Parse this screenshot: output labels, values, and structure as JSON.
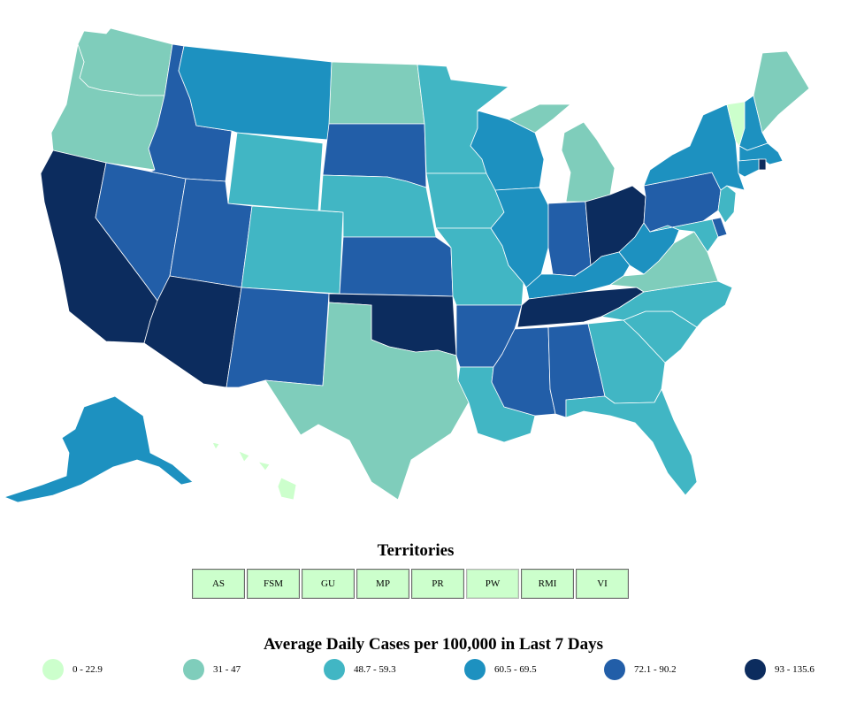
{
  "map": {
    "colors": {
      "bin1": "#ccffcc",
      "bin2": "#7fcdbb",
      "bin3": "#41b6c4",
      "bin4": "#1d91c0",
      "bin5": "#225ea8",
      "bin6": "#0c2c5e"
    },
    "states": [
      {
        "id": "WA",
        "bin": "bin2"
      },
      {
        "id": "OR",
        "bin": "bin2"
      },
      {
        "id": "CA",
        "bin": "bin6"
      },
      {
        "id": "NV",
        "bin": "bin5"
      },
      {
        "id": "ID",
        "bin": "bin5"
      },
      {
        "id": "MT",
        "bin": "bin4"
      },
      {
        "id": "WY",
        "bin": "bin3"
      },
      {
        "id": "UT",
        "bin": "bin5"
      },
      {
        "id": "AZ",
        "bin": "bin6"
      },
      {
        "id": "CO",
        "bin": "bin3"
      },
      {
        "id": "NM",
        "bin": "bin5"
      },
      {
        "id": "ND",
        "bin": "bin2"
      },
      {
        "id": "SD",
        "bin": "bin5"
      },
      {
        "id": "NE",
        "bin": "bin3"
      },
      {
        "id": "KS",
        "bin": "bin5"
      },
      {
        "id": "OK",
        "bin": "bin6"
      },
      {
        "id": "TX",
        "bin": "bin2"
      },
      {
        "id": "MN",
        "bin": "bin3"
      },
      {
        "id": "IA",
        "bin": "bin3"
      },
      {
        "id": "MO",
        "bin": "bin3"
      },
      {
        "id": "AR",
        "bin": "bin5"
      },
      {
        "id": "LA",
        "bin": "bin3"
      },
      {
        "id": "WI",
        "bin": "bin4"
      },
      {
        "id": "IL",
        "bin": "bin4"
      },
      {
        "id": "MI",
        "bin": "bin2"
      },
      {
        "id": "IN",
        "bin": "bin5"
      },
      {
        "id": "OH",
        "bin": "bin6"
      },
      {
        "id": "KY",
        "bin": "bin4"
      },
      {
        "id": "TN",
        "bin": "bin6"
      },
      {
        "id": "MS",
        "bin": "bin5"
      },
      {
        "id": "AL",
        "bin": "bin5"
      },
      {
        "id": "GA",
        "bin": "bin3"
      },
      {
        "id": "FL",
        "bin": "bin3"
      },
      {
        "id": "SC",
        "bin": "bin3"
      },
      {
        "id": "NC",
        "bin": "bin3"
      },
      {
        "id": "VA",
        "bin": "bin2"
      },
      {
        "id": "WV",
        "bin": "bin4"
      },
      {
        "id": "PA",
        "bin": "bin5"
      },
      {
        "id": "NY",
        "bin": "bin4"
      },
      {
        "id": "VT",
        "bin": "bin1"
      },
      {
        "id": "NH",
        "bin": "bin4"
      },
      {
        "id": "ME",
        "bin": "bin2"
      },
      {
        "id": "MA",
        "bin": "bin4"
      },
      {
        "id": "RI",
        "bin": "bin6"
      },
      {
        "id": "CT",
        "bin": "bin4"
      },
      {
        "id": "NJ",
        "bin": "bin3"
      },
      {
        "id": "DE",
        "bin": "bin5"
      },
      {
        "id": "MD",
        "bin": "bin3"
      },
      {
        "id": "AK",
        "bin": "bin4"
      },
      {
        "id": "HI",
        "bin": "bin1"
      }
    ]
  },
  "territories": {
    "title": "Territories",
    "items": [
      {
        "label": "AS",
        "style": "dark"
      },
      {
        "label": "FSM",
        "style": "dark"
      },
      {
        "label": "GU",
        "style": "dark"
      },
      {
        "label": "MP",
        "style": "dark"
      },
      {
        "label": "PR",
        "style": "dark"
      },
      {
        "label": "PW",
        "style": "light"
      },
      {
        "label": "RMI",
        "style": "dark"
      },
      {
        "label": "VI",
        "style": "dark"
      }
    ]
  },
  "legend": {
    "title": "Average Daily Cases per 100,000 in Last 7 Days",
    "items": [
      {
        "label": "0 - 22.9",
        "color": "#ccffcc"
      },
      {
        "label": "31 - 47",
        "color": "#7fcdbb"
      },
      {
        "label": "48.7 - 59.3",
        "color": "#41b6c4"
      },
      {
        "label": "60.5 - 69.5",
        "color": "#1d91c0"
      },
      {
        "label": "72.1 - 90.2",
        "color": "#225ea8"
      },
      {
        "label": "93 - 135.6",
        "color": "#0c2c5e"
      }
    ]
  }
}
